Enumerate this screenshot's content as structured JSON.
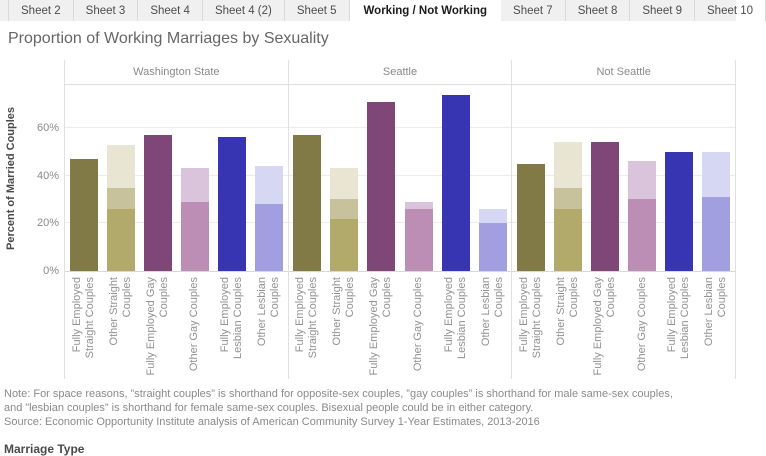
{
  "tabs": {
    "items": [
      {
        "label": "Sheet 2",
        "active": false
      },
      {
        "label": "Sheet 3",
        "active": false
      },
      {
        "label": "Sheet 4",
        "active": false
      },
      {
        "label": "Sheet 4 (2)",
        "active": false
      },
      {
        "label": "Sheet 5",
        "active": false
      },
      {
        "label": "Working / Not Working",
        "active": true
      },
      {
        "label": "Sheet 7",
        "active": false
      },
      {
        "label": "Sheet 8",
        "active": false
      },
      {
        "label": "Sheet 9",
        "active": false
      },
      {
        "label": "Sheet 10",
        "active": false
      }
    ]
  },
  "title": "Proportion of Working Marriages by Sexuality",
  "chart_data": {
    "type": "bar",
    "title": "Proportion of Working Marriages by Sexuality",
    "ylabel": "Percent of Married Couples",
    "xlabel": "Marriage Type",
    "ymax": 78,
    "grid": true,
    "yticks": [
      {
        "label": "0%",
        "value": 0
      },
      {
        "label": "20%",
        "value": 20
      },
      {
        "label": "40%",
        "value": 40
      },
      {
        "label": "60%",
        "value": 60
      }
    ],
    "colors": {
      "straight_full": "#827a46",
      "straight_other_low": "#b1aa6b",
      "straight_other_mid": "#c7c29b",
      "straight_other_high": "#e8e6d3",
      "gay_full": "#7e4777",
      "gay_other_low": "#bc8db5",
      "gay_other_high": "#dac4dc",
      "lesbian_full": "#3835b2",
      "lesbian_other_low": "#a19fdf",
      "lesbian_other_high": "#d6d7f2"
    },
    "categories": [
      {
        "name": "Fully Employed Straight Couples",
        "lines": [
          "Fully Employed",
          "Straight Couples"
        ]
      },
      {
        "name": "Other Straight Couples",
        "lines": [
          "Other Straight",
          "Couples"
        ]
      },
      {
        "name": "Fully Employed Gay Couples",
        "lines": [
          "Fully Employed Gay",
          "Couples"
        ]
      },
      {
        "name": "Other Gay Couples",
        "lines": [
          "Other Gay Couples"
        ]
      },
      {
        "name": "Fully Employed Lesbian Couples",
        "lines": [
          "Fully Employed",
          "Lesbian Couples"
        ]
      },
      {
        "name": "Other Lesbian Couples",
        "lines": [
          "Other Lesbian",
          "Couples"
        ]
      }
    ],
    "panels": [
      {
        "label": "Washington State",
        "bars": [
          {
            "category": "Fully Employed Straight Couples",
            "segments": [
              {
                "to": 47,
                "color": "#827a46"
              }
            ]
          },
          {
            "category": "Other Straight Couples",
            "segments": [
              {
                "to": 26,
                "color": "#b1aa6b"
              },
              {
                "to": 35,
                "color": "#c7c29b"
              },
              {
                "to": 53,
                "color": "#e8e6d3"
              }
            ]
          },
          {
            "category": "Fully Employed Gay Couples",
            "segments": [
              {
                "to": 57,
                "color": "#7e4777"
              }
            ]
          },
          {
            "category": "Other Gay Couples",
            "segments": [
              {
                "to": 29,
                "color": "#bc8db5"
              },
              {
                "to": 43,
                "color": "#dac4dc"
              }
            ]
          },
          {
            "category": "Fully Employed Lesbian Couples",
            "segments": [
              {
                "to": 56,
                "color": "#3835b2"
              }
            ]
          },
          {
            "category": "Other Lesbian Couples",
            "segments": [
              {
                "to": 28,
                "color": "#a19fdf"
              },
              {
                "to": 44,
                "color": "#d6d7f2"
              }
            ]
          }
        ]
      },
      {
        "label": "Seattle",
        "bars": [
          {
            "category": "Fully Employed Straight Couples",
            "segments": [
              {
                "to": 57,
                "color": "#827a46"
              }
            ]
          },
          {
            "category": "Other Straight Couples",
            "segments": [
              {
                "to": 22,
                "color": "#b1aa6b"
              },
              {
                "to": 30,
                "color": "#c7c29b"
              },
              {
                "to": 43,
                "color": "#e8e6d3"
              }
            ]
          },
          {
            "category": "Fully Employed Gay Couples",
            "segments": [
              {
                "to": 71,
                "color": "#7e4777"
              }
            ]
          },
          {
            "category": "Other Gay Couples",
            "segments": [
              {
                "to": 26,
                "color": "#bc8db5"
              },
              {
                "to": 29,
                "color": "#dac4dc"
              }
            ]
          },
          {
            "category": "Fully Employed Lesbian Couples",
            "segments": [
              {
                "to": 74,
                "color": "#3835b2"
              }
            ]
          },
          {
            "category": "Other Lesbian Couples",
            "segments": [
              {
                "to": 20,
                "color": "#a19fdf"
              },
              {
                "to": 26,
                "color": "#d6d7f2"
              }
            ]
          }
        ]
      },
      {
        "label": "Not Seattle",
        "bars": [
          {
            "category": "Fully Employed Straight Couples",
            "segments": [
              {
                "to": 45,
                "color": "#827a46"
              }
            ]
          },
          {
            "category": "Other Straight Couples",
            "segments": [
              {
                "to": 26,
                "color": "#b1aa6b"
              },
              {
                "to": 35,
                "color": "#c7c29b"
              },
              {
                "to": 54,
                "color": "#e8e6d3"
              }
            ]
          },
          {
            "category": "Fully Employed Gay Couples",
            "segments": [
              {
                "to": 54,
                "color": "#7e4777"
              }
            ]
          },
          {
            "category": "Other Gay Couples",
            "segments": [
              {
                "to": 30,
                "color": "#bc8db5"
              },
              {
                "to": 46,
                "color": "#dac4dc"
              }
            ]
          },
          {
            "category": "Fully Employed Lesbian Couples",
            "segments": [
              {
                "to": 50,
                "color": "#3835b2"
              }
            ]
          },
          {
            "category": "Other Lesbian Couples",
            "segments": [
              {
                "to": 31,
                "color": "#a19fdf"
              },
              {
                "to": 50,
                "color": "#d6d7f2"
              }
            ]
          }
        ]
      }
    ]
  },
  "note": {
    "lines": [
      "Note: For space reasons, ”straight couples” is shorthand for opposite-sex couples, ”gay couples” is shorthand for male same-sex couples,",
      "and ”lesbian couples” is shorthand for female same-sex couples. Bisexual people could be in either category.",
      "Source: Economic Opportunity Institute analysis of American Community Survey 1-Year Estimates, 2013-2016"
    ]
  }
}
